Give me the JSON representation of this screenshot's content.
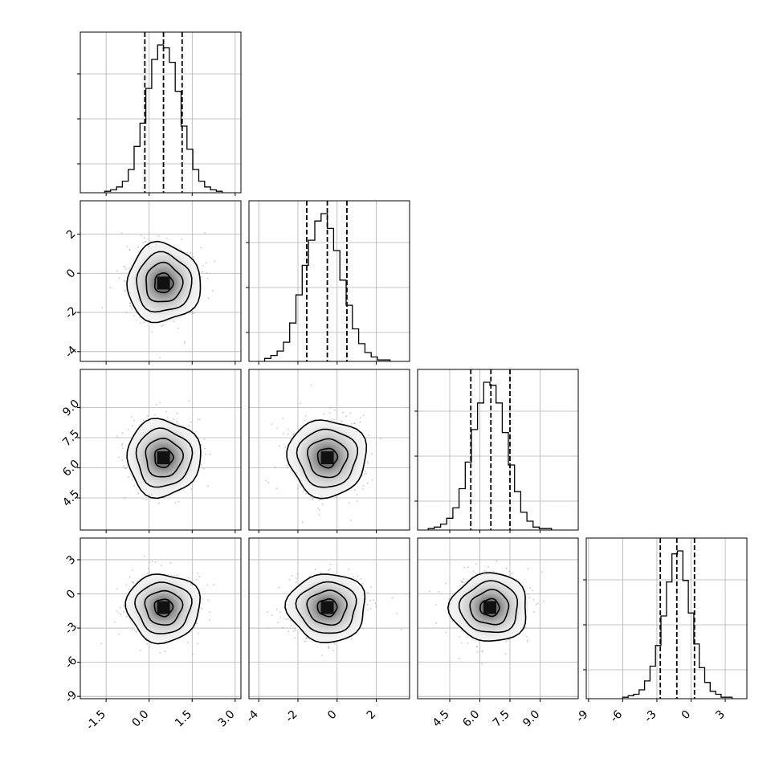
{
  "chart_data": {
    "type": "corner",
    "title": "",
    "grid": true,
    "n_params": 4,
    "param_labels": [
      "",
      "",
      "",
      ""
    ],
    "ranges": [
      [
        -2.4,
        3.2
      ],
      [
        -4.5,
        3.7
      ],
      [
        2.9,
        10.9
      ],
      [
        -9.2,
        4.9
      ]
    ],
    "means": [
      0.5,
      -0.5,
      6.5,
      -1.2
    ],
    "stds": [
      0.64,
      1.0,
      0.96,
      1.5
    ],
    "quantiles_16_50_84": [
      [
        -0.15,
        0.5,
        1.15
      ],
      [
        -1.55,
        -0.5,
        0.5
      ],
      [
        5.55,
        6.55,
        7.5
      ],
      [
        -2.7,
        -1.25,
        0.3
      ]
    ],
    "ticks": [
      [
        "-1.5",
        "0.0",
        "1.5",
        "3.0"
      ],
      [
        "-4",
        "-2",
        "0",
        "2"
      ],
      [
        "4.5",
        "6.0",
        "7.5",
        "9.0"
      ],
      [
        "-9",
        "-6",
        "-3",
        "0",
        "3"
      ]
    ],
    "tick_values": [
      [
        -1.5,
        0.0,
        1.5,
        3.0
      ],
      [
        -4,
        -2,
        0,
        2
      ],
      [
        4.5,
        6.0,
        7.5,
        9.0
      ],
      [
        -9,
        -6,
        -3,
        0,
        3
      ]
    ],
    "y_tick_rows": [
      {
        "row": 1,
        "param": 1,
        "labels": [
          "2",
          "0",
          "-2",
          "-4"
        ],
        "values": [
          2,
          0,
          -2,
          -4
        ]
      },
      {
        "row": 2,
        "param": 2,
        "labels": [
          "9.0",
          "7.5",
          "6.0",
          "4.5"
        ],
        "values": [
          9.0,
          7.5,
          6.0,
          4.5
        ]
      },
      {
        "row": 3,
        "param": 3,
        "labels": [
          "3",
          "0",
          "-3",
          "-6",
          "-9"
        ],
        "values": [
          3,
          0,
          -3,
          -6,
          -9
        ]
      }
    ],
    "histograms": [
      {
        "param": 0,
        "counts": [
          1,
          2,
          4,
          8,
          16,
          32,
          48,
          72,
          92,
          102,
          100,
          90,
          70,
          46,
          30,
          16,
          8,
          4,
          2,
          1
        ]
      },
      {
        "param": 1,
        "counts": [
          2,
          4,
          7,
          13,
          26,
          45,
          65,
          82,
          95,
          100,
          90,
          75,
          55,
          38,
          22,
          12,
          6,
          3,
          1,
          1
        ]
      },
      {
        "param": 2,
        "counts": [
          1,
          2,
          4,
          8,
          15,
          28,
          46,
          68,
          86,
          100,
          98,
          86,
          66,
          44,
          26,
          12,
          6,
          2,
          1,
          1
        ]
      },
      {
        "param": 3,
        "counts": [
          1,
          2,
          3,
          6,
          12,
          22,
          36,
          56,
          79,
          98,
          100,
          80,
          58,
          37,
          21,
          11,
          5,
          3,
          1,
          1
        ]
      }
    ],
    "contour_levels": [
      "0.5 sigma",
      "1 sigma",
      "1.5 sigma",
      "2 sigma"
    ]
  }
}
